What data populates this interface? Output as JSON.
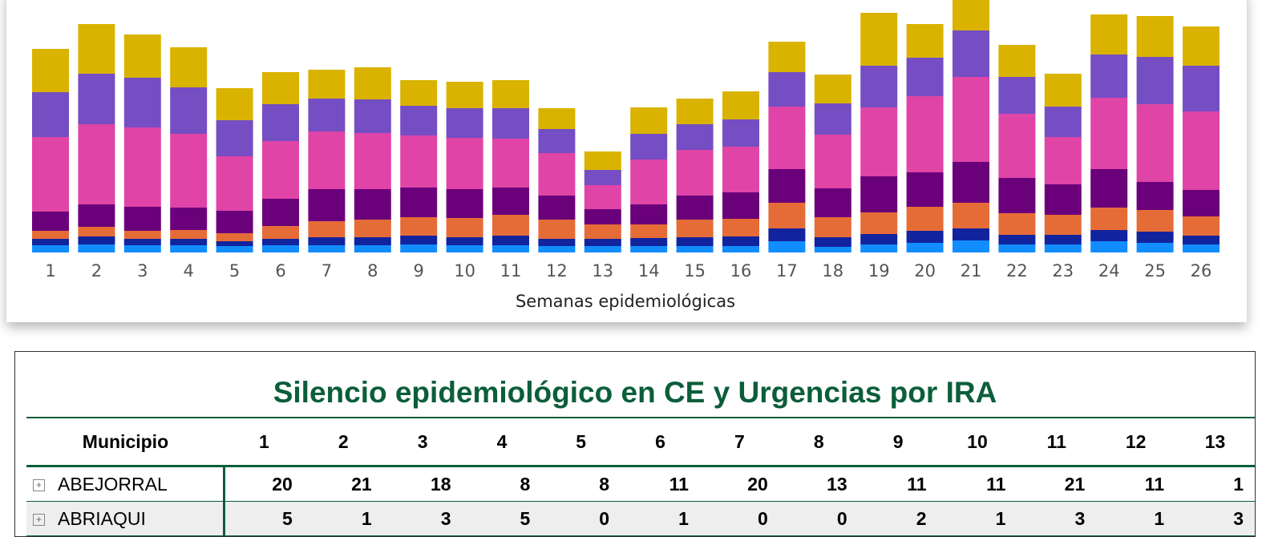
{
  "chart_data": {
    "type": "stacked_bar",
    "x_label": "Semanas epidemiológicas",
    "categories": [
      "1",
      "2",
      "3",
      "4",
      "5",
      "6",
      "7",
      "8",
      "9",
      "10",
      "11",
      "12",
      "13",
      "14",
      "15",
      "16",
      "17",
      "18",
      "19",
      "20",
      "21",
      "22",
      "23",
      "24",
      "25",
      "26"
    ],
    "ylim": [
      0,
      320
    ],
    "series": [
      {
        "color": "#118dff",
        "values": [
          9,
          10,
          9,
          9,
          8,
          9,
          9,
          9,
          10,
          9,
          9,
          8,
          8,
          8,
          8,
          8,
          14,
          7,
          10,
          12,
          15,
          10,
          10,
          14,
          12,
          10
        ]
      },
      {
        "color": "#12239e",
        "values": [
          8,
          10,
          8,
          8,
          6,
          8,
          10,
          10,
          11,
          10,
          12,
          9,
          9,
          10,
          11,
          12,
          16,
          12,
          13,
          15,
          15,
          12,
          12,
          14,
          14,
          11
        ]
      },
      {
        "color": "#e66c37",
        "values": [
          10,
          12,
          10,
          11,
          10,
          16,
          20,
          22,
          23,
          24,
          26,
          24,
          18,
          17,
          22,
          22,
          32,
          25,
          27,
          30,
          32,
          27,
          25,
          28,
          27,
          24
        ]
      },
      {
        "color": "#6b007b",
        "values": [
          24,
          28,
          30,
          28,
          28,
          34,
          40,
          38,
          37,
          36,
          34,
          30,
          19,
          25,
          30,
          33,
          42,
          36,
          45,
          43,
          51,
          44,
          38,
          48,
          35,
          33
        ]
      },
      {
        "color": "#e044a7",
        "values": [
          93,
          100,
          99,
          92,
          68,
          72,
          72,
          70,
          65,
          64,
          61,
          53,
          30,
          56,
          57,
          57,
          78,
          67,
          86,
          95,
          106,
          80,
          59,
          89,
          97,
          98
        ]
      },
      {
        "color": "#744ec2",
        "values": [
          56,
          63,
          62,
          58,
          45,
          46,
          41,
          42,
          37,
          37,
          38,
          30,
          19,
          32,
          32,
          34,
          43,
          39,
          52,
          48,
          58,
          46,
          38,
          54,
          59,
          57
        ]
      },
      {
        "color": "#d9b300",
        "values": [
          54,
          62,
          54,
          50,
          40,
          40,
          36,
          40,
          32,
          33,
          35,
          26,
          23,
          33,
          32,
          35,
          38,
          36,
          66,
          42,
          40,
          40,
          41,
          50,
          51,
          49
        ]
      }
    ]
  },
  "table": {
    "title": "Silencio epidemiológico en CE y Urgencias por IRA",
    "header": [
      "Municipio",
      "1",
      "2",
      "3",
      "4",
      "5",
      "6",
      "7",
      "8",
      "9",
      "10",
      "11",
      "12",
      "13"
    ],
    "rows": [
      [
        "ABEJORRAL",
        20,
        21,
        18,
        8,
        8,
        11,
        20,
        13,
        11,
        11,
        21,
        11,
        1
      ],
      [
        "ABRIAQUI",
        5,
        1,
        3,
        5,
        0,
        1,
        0,
        0,
        2,
        1,
        3,
        1,
        3
      ]
    ]
  }
}
